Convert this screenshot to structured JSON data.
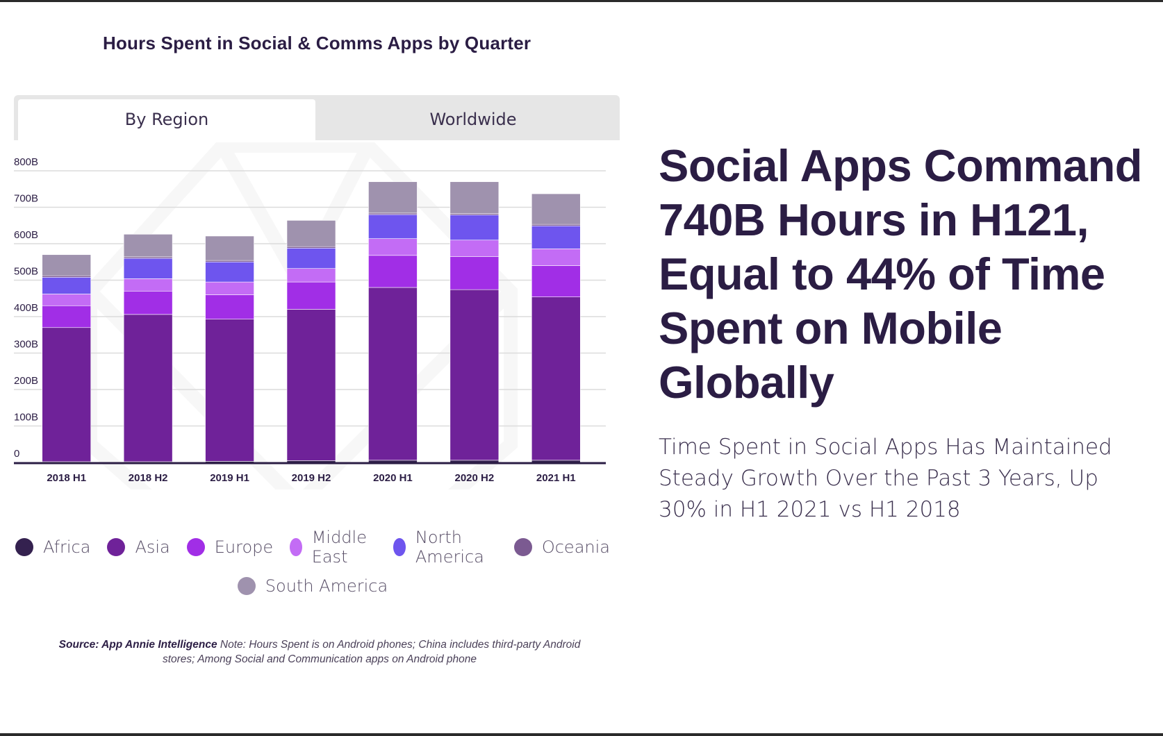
{
  "page": {
    "chart_title": "Hours Spent in Social & Comms Apps by Quarter",
    "tabs": [
      {
        "label": "By Region",
        "active": true
      },
      {
        "label": "Worldwide",
        "active": false
      }
    ],
    "headline": "Social Apps Command 740B Hours in H121, Equal to 44% of Time Spent on Mobile Globally",
    "subheadline": "Time Spent in Social Apps Has Maintained Steady Growth Over the Past 3 Years, Up 30% in H1 2021 vs H1 2018",
    "source_bold": "Source: App Annie Intelligence",
    "source_note": " Note: Hours Spent is on Android phones; China includes third-party Android stores; Among Social and Communication apps on Android phone"
  },
  "chart_data": {
    "type": "bar",
    "stacked": true,
    "categories": [
      "2018 H1",
      "2018 H2",
      "2019 H1",
      "2019 H2",
      "2020 H1",
      "2020 H2",
      "2021 H1"
    ],
    "y_ticks": [
      "0",
      "100B",
      "200B",
      "300B",
      "400B",
      "500B",
      "600B",
      "700B",
      "800B"
    ],
    "ylim": [
      0,
      800
    ],
    "grid": true,
    "legend_position": "bottom",
    "series": [
      {
        "name": "Africa",
        "color": "#34214f",
        "values": [
          2,
          2,
          3,
          5,
          6,
          6,
          6
        ]
      },
      {
        "name": "Asia",
        "color": "#6f2299",
        "values": [
          368,
          404,
          390,
          415,
          474,
          468,
          448
        ]
      },
      {
        "name": "Europe",
        "color": "#a12ee6",
        "values": [
          60,
          64,
          67,
          75,
          88,
          91,
          86
        ]
      },
      {
        "name": "Middle East",
        "color": "#c36cf5",
        "values": [
          32,
          34,
          35,
          37,
          46,
          45,
          46
        ]
      },
      {
        "name": "North America",
        "color": "#6e55ee",
        "values": [
          46,
          56,
          55,
          56,
          66,
          69,
          63
        ]
      },
      {
        "name": "Oceania",
        "color": "#7b5a91",
        "values": [
          4,
          4,
          4,
          4,
          4,
          4,
          4
        ]
      },
      {
        "name": "South America",
        "color": "#9f92ae",
        "values": [
          58,
          62,
          67,
          72,
          86,
          87,
          84
        ]
      }
    ]
  }
}
